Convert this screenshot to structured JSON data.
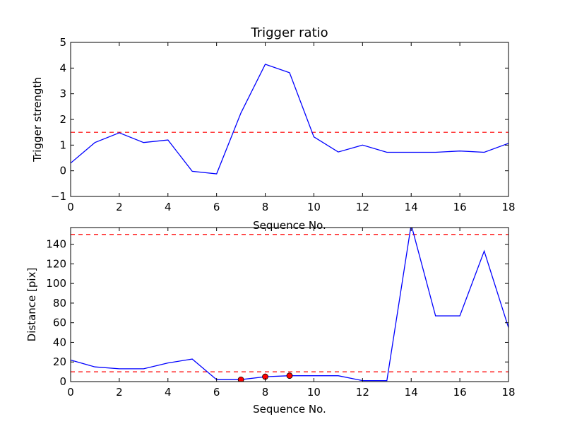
{
  "chart_data": [
    {
      "type": "line",
      "title": "Trigger ratio",
      "xlabel": "Sequence No.",
      "ylabel": "Trigger strength",
      "xlim": [
        0,
        18
      ],
      "ylim": [
        -1,
        5
      ],
      "xticks": [
        "0",
        "2",
        "4",
        "6",
        "8",
        "10",
        "12",
        "14",
        "16",
        "18"
      ],
      "yticks": [
        "−1",
        "0",
        "1",
        "2",
        "3",
        "4",
        "5"
      ],
      "grid": false,
      "series": [
        {
          "color": "#0000ff",
          "style": "solid",
          "x": [
            0,
            1,
            2,
            3,
            4,
            5,
            6,
            7,
            8,
            9,
            10,
            11,
            12,
            13,
            14,
            15,
            16,
            17,
            18
          ],
          "y": [
            0.3,
            1.1,
            1.48,
            1.1,
            1.2,
            -0.02,
            -0.12,
            2.25,
            4.15,
            3.82,
            1.32,
            0.73,
            1.0,
            0.72,
            0.72,
            0.72,
            0.77,
            0.72,
            1.07
          ]
        }
      ],
      "hlines": [
        {
          "y": 1.5,
          "color": "#ff0000",
          "style": "dashed"
        }
      ]
    },
    {
      "type": "line",
      "title": "",
      "xlabel": "Sequence No.",
      "ylabel": "Distance [pix]",
      "xlim": [
        0,
        18
      ],
      "ylim": [
        0,
        157
      ],
      "xticks": [
        "0",
        "2",
        "4",
        "6",
        "8",
        "10",
        "12",
        "14",
        "16",
        "18"
      ],
      "yticks": [
        "0",
        "20",
        "40",
        "60",
        "80",
        "100",
        "120",
        "140"
      ],
      "grid": false,
      "series": [
        {
          "color": "#0000ff",
          "style": "solid",
          "x": [
            0,
            1,
            2,
            3,
            4,
            5,
            6,
            7,
            8,
            9,
            10,
            11,
            12,
            13,
            14,
            15,
            16,
            17,
            18
          ],
          "y": [
            22,
            15,
            13,
            13,
            19,
            23,
            2,
            2,
            5,
            6,
            6,
            6,
            1,
            1,
            160,
            67,
            67,
            133,
            55
          ]
        }
      ],
      "markers": {
        "color": "#ff0000",
        "x": [
          7,
          8,
          9
        ],
        "y": [
          2,
          5,
          6
        ]
      },
      "hlines": [
        {
          "y": 150,
          "color": "#ff0000",
          "style": "dashed"
        },
        {
          "y": 10,
          "color": "#ff0000",
          "style": "dashed"
        }
      ]
    }
  ]
}
